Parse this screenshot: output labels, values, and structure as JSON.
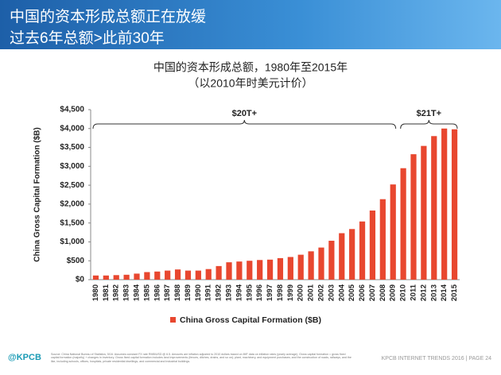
{
  "header": {
    "title": "中国的资本形成总额正在放缓",
    "subtitle": "过去6年总额>此前30年"
  },
  "chart_data": {
    "type": "bar",
    "title": "中国的资本形成总额，1980年至2015年",
    "subtitle": "（以2010年时美元计价）",
    "y_label": "China Gross Capital Formation ($B)",
    "categories": [
      "1980",
      "1981",
      "1982",
      "1983",
      "1984",
      "1985",
      "1986",
      "1987",
      "1988",
      "1989",
      "1990",
      "1991",
      "1992",
      "1993",
      "1994",
      "1995",
      "1996",
      "1997",
      "1998",
      "1999",
      "2000",
      "2001",
      "2002",
      "2003",
      "2004",
      "2005",
      "2006",
      "2007",
      "2008",
      "2009",
      "2010",
      "2011",
      "2012",
      "2013",
      "2014",
      "2015"
    ],
    "series": [
      {
        "name": "China Gross Capital Formation ($B)",
        "color": "#e8472f",
        "values": [
          110,
          110,
          120,
          130,
          160,
          200,
          215,
          240,
          270,
          240,
          240,
          280,
          360,
          460,
          480,
          500,
          520,
          530,
          570,
          600,
          660,
          750,
          850,
          1030,
          1230,
          1340,
          1540,
          1830,
          2130,
          2520,
          2950,
          3320,
          3540,
          3800,
          4000,
          3980
        ]
      }
    ],
    "ylim": [
      0,
      4500
    ],
    "yticks": [
      {
        "value": 0,
        "label": "$0"
      },
      {
        "value": 500,
        "label": "$500"
      },
      {
        "value": 1000,
        "label": "$1,000"
      },
      {
        "value": 1500,
        "label": "$1,500"
      },
      {
        "value": 2000,
        "label": "$2,000"
      },
      {
        "value": 2500,
        "label": "$2,500"
      },
      {
        "value": 3000,
        "label": "$3,000"
      },
      {
        "value": 3500,
        "label": "$3,500"
      },
      {
        "value": 4000,
        "label": "$4,000"
      },
      {
        "value": 4500,
        "label": "$4,500"
      }
    ],
    "annotations": [
      {
        "text": "$20T+",
        "start": "1980",
        "end": "2009"
      },
      {
        "text": "$21T+",
        "start": "2010",
        "end": "2015"
      }
    ],
    "legend": "bottom"
  },
  "footer": {
    "logo": "@KPCB",
    "source": "Source: China National Bureau of Statistics, 5/16. Assumes constant FX rate RMB/USD @ 6.5. Amounts are inflation adjusted to 2010 dollars based on IMF data on inflation rates (yearly average). Gross capital formation = gross fixed capital formation (majority) + changes in inventory. Gross fixed capital formation includes land improvements (fences, ditches, drains, and so on); plant, machinery, and equipment purchases; and the construction of roads, railways, and the like, including schools, offices, hospitals, private residential dwellings, and commercial and industrial buildings.",
    "page": "KPCB INTERNET TRENDS 2016  |  PAGE 24"
  }
}
